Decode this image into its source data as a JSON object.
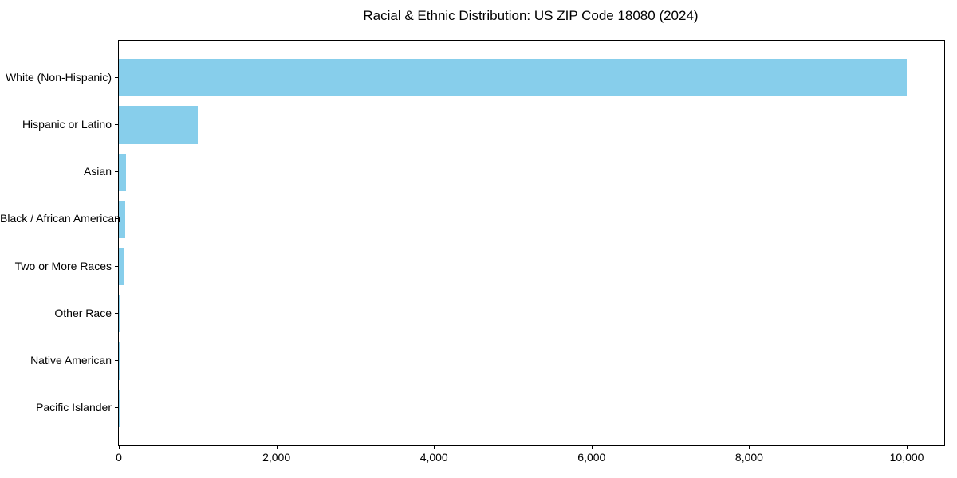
{
  "chart_data": {
    "type": "bar",
    "orientation": "horizontal",
    "title": "Racial & Ethnic Distribution: US ZIP Code 18080 (2024)",
    "xlabel": "",
    "ylabel": "",
    "categories": [
      "White (Non-Hispanic)",
      "Hispanic or Latino",
      "Asian",
      "Black / African American",
      "Two or More Races",
      "Other Race",
      "Native American",
      "Pacific Islander"
    ],
    "values": [
      10000,
      1000,
      90,
      85,
      60,
      10,
      4,
      2
    ],
    "xlim": [
      0,
      10475
    ],
    "xtick_values": [
      0,
      2000,
      4000,
      6000,
      8000,
      10000
    ],
    "xtick_labels": [
      "0",
      "2,000",
      "4,000",
      "6,000",
      "8,000",
      "10,000"
    ],
    "grid": false,
    "legend": null,
    "bar_color": "#87CEEB",
    "axis_color": "#000000",
    "text_color": "#000000"
  }
}
